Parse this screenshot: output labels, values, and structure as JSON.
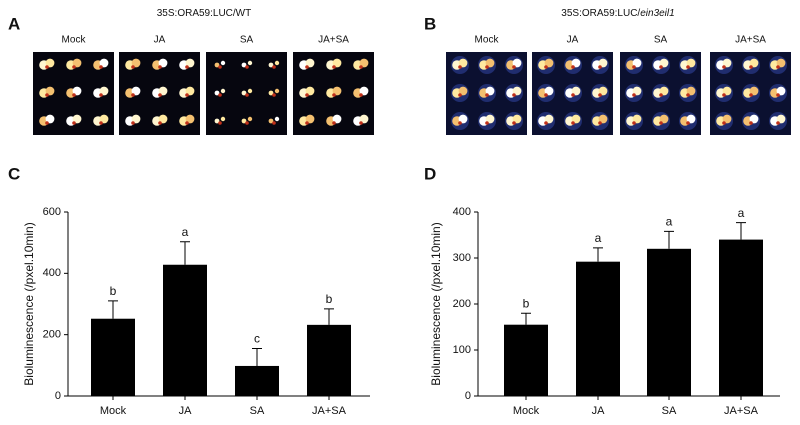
{
  "panels_top": [
    {
      "label": "A",
      "title_parts": [
        "35S:ORA59:LUC/WT"
      ],
      "conditions": [
        "Mock",
        "JA",
        "SA",
        "JA+SA"
      ]
    },
    {
      "label": "B",
      "title_parts": [
        "35S:ORA59:LUC/",
        "ein3eil1"
      ],
      "conditions": [
        "Mock",
        "JA",
        "SA",
        "JA+SA"
      ]
    }
  ],
  "chart_data": [
    {
      "type": "bar",
      "label": "C",
      "ylabel": "Bioluminescence (/pxel.10min)",
      "categories": [
        "Mock",
        "JA",
        "SA",
        "JA+SA"
      ],
      "values": [
        252,
        428,
        98,
        232
      ],
      "errors": [
        58,
        75,
        57,
        52
      ],
      "annotations": [
        "b",
        "a",
        "c",
        "b"
      ],
      "color": "#000000",
      "ylim": [
        0,
        600
      ],
      "yticks": [
        0,
        200,
        400,
        600
      ]
    },
    {
      "type": "bar",
      "label": "D",
      "ylabel": "Bioluminescence (/pxel.10min)",
      "categories": [
        "Mock",
        "JA",
        "SA",
        "JA+SA"
      ],
      "values": [
        155,
        292,
        320,
        340
      ],
      "errors": [
        25,
        30,
        38,
        37
      ],
      "annotations": [
        "b",
        "a",
        "a",
        "a"
      ],
      "color": "#000000",
      "ylim": [
        0,
        400
      ],
      "yticks": [
        0,
        100,
        200,
        300,
        400
      ]
    }
  ]
}
